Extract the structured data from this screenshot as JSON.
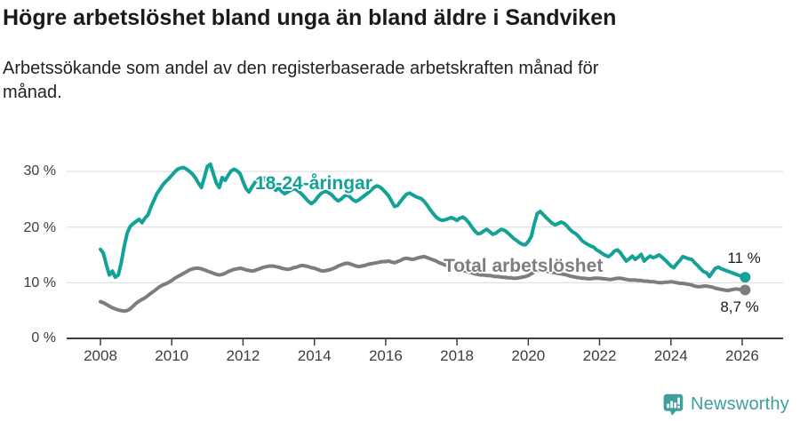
{
  "footer": {
    "logo_text": "Newsworthy",
    "logo_icon": "newsworthy-speech-bubble-bar-chart-icon",
    "brand_color": "#3f9f9b"
  },
  "chart_data": {
    "type": "line",
    "title": "Högre arbetslöshet bland unga än bland äldre i Sandviken",
    "subtitle": "Arbetssökande som andel av den registerbaserade arbetskraften månad för månad.",
    "x_unit": "month",
    "x_start": "2008-01",
    "x_end": "2026-02",
    "x_ticks": [
      2008,
      2010,
      2012,
      2014,
      2016,
      2018,
      2020,
      2022,
      2024,
      2026
    ],
    "x_tick_labels": [
      "2008",
      "2010",
      "2012",
      "2014",
      "2016",
      "2018",
      "2020",
      "2022",
      "2024",
      "2026"
    ],
    "y_ticks": [
      0,
      10,
      20,
      30
    ],
    "y_tick_labels_top_to_bottom": [
      "30 %",
      "20 %",
      "10 %",
      "0 %"
    ],
    "ylim": [
      0,
      33
    ],
    "grid": "horizontal",
    "grid_color": "#d9d9d9",
    "axis_color": "#3d3d3d",
    "series": [
      {
        "name": "18-24-åringar",
        "color": "#12a296",
        "end_label": "11 %",
        "values": [
          16.0,
          15.3,
          13.2,
          11.4,
          12.1,
          11.0,
          11.4,
          13.6,
          16.5,
          18.9,
          20.1,
          20.6,
          21.0,
          21.4,
          20.8,
          21.6,
          22.2,
          23.6,
          24.8,
          26.0,
          26.8,
          27.6,
          28.2,
          28.7,
          29.3,
          29.9,
          30.4,
          30.6,
          30.7,
          30.4,
          30.0,
          29.5,
          28.8,
          27.9,
          27.1,
          29.0,
          30.9,
          31.3,
          29.6,
          27.9,
          27.1,
          28.9,
          28.4,
          29.3,
          30.1,
          30.4,
          30.1,
          29.6,
          28.2,
          26.9,
          26.3,
          27.2,
          28.0,
          28.7,
          29.0,
          28.8,
          28.3,
          27.6,
          27.1,
          26.6,
          27.1,
          26.4,
          26.0,
          26.3,
          26.6,
          26.9,
          26.7,
          26.3,
          25.8,
          25.2,
          24.6,
          24.2,
          24.6,
          25.3,
          25.9,
          26.3,
          26.4,
          26.1,
          25.7,
          25.1,
          24.7,
          25.0,
          25.5,
          25.8,
          25.4,
          24.9,
          24.6,
          24.9,
          25.3,
          25.7,
          26.1,
          26.6,
          27.1,
          27.4,
          27.2,
          26.8,
          26.2,
          25.6,
          24.6,
          23.7,
          23.9,
          24.6,
          25.3,
          25.9,
          26.1,
          25.8,
          25.5,
          25.3,
          25.1,
          24.6,
          23.9,
          23.1,
          22.4,
          21.8,
          21.4,
          21.2,
          21.3,
          21.5,
          21.7,
          21.5,
          21.2,
          21.6,
          21.8,
          21.4,
          20.8,
          20.0,
          19.3,
          18.8,
          18.9,
          19.3,
          19.6,
          19.2,
          18.7,
          18.9,
          19.3,
          19.6,
          19.4,
          19.0,
          18.5,
          18.0,
          17.6,
          17.2,
          16.9,
          16.8,
          17.4,
          18.3,
          20.5,
          22.4,
          22.8,
          22.3,
          21.7,
          21.2,
          20.7,
          20.4,
          20.6,
          20.9,
          20.7,
          20.2,
          19.6,
          19.1,
          18.8,
          18.3,
          17.6,
          17.2,
          16.9,
          16.6,
          16.4,
          15.9,
          15.6,
          15.2,
          14.9,
          14.7,
          15.1,
          15.7,
          15.9,
          15.4,
          14.6,
          13.9,
          14.3,
          14.8,
          14.2,
          14.6,
          15.1,
          13.9,
          14.4,
          14.8,
          14.5,
          14.7,
          15.0,
          14.6,
          14.1,
          13.6,
          13.0,
          12.7,
          13.4,
          14.0,
          14.7,
          14.5,
          14.3,
          14.2,
          13.6,
          13.1,
          12.5,
          12.0,
          11.8,
          11.1,
          11.9,
          12.6,
          12.8,
          12.5,
          12.3,
          12.1,
          11.9,
          11.7,
          11.5,
          11.3,
          11.2,
          11.0
        ]
      },
      {
        "name": "Total arbetslöshet",
        "color": "#7d7d7d",
        "end_label": "8,7 %",
        "values": [
          6.6,
          6.4,
          6.1,
          5.8,
          5.5,
          5.3,
          5.1,
          5.0,
          4.9,
          5.0,
          5.3,
          5.8,
          6.3,
          6.7,
          7.0,
          7.3,
          7.7,
          8.1,
          8.5,
          8.9,
          9.3,
          9.6,
          9.8,
          10.1,
          10.4,
          10.8,
          11.1,
          11.4,
          11.7,
          12.0,
          12.3,
          12.5,
          12.6,
          12.6,
          12.5,
          12.3,
          12.1,
          11.9,
          11.7,
          11.5,
          11.4,
          11.5,
          11.7,
          12.0,
          12.2,
          12.4,
          12.5,
          12.6,
          12.5,
          12.3,
          12.2,
          12.1,
          12.2,
          12.4,
          12.6,
          12.8,
          12.9,
          13.0,
          13.0,
          12.9,
          12.8,
          12.6,
          12.5,
          12.4,
          12.5,
          12.7,
          12.8,
          13.0,
          13.1,
          13.0,
          12.9,
          12.7,
          12.6,
          12.4,
          12.2,
          12.1,
          12.2,
          12.3,
          12.5,
          12.7,
          13.0,
          13.2,
          13.4,
          13.5,
          13.4,
          13.2,
          13.0,
          12.9,
          13.0,
          13.1,
          13.3,
          13.4,
          13.5,
          13.6,
          13.7,
          13.8,
          13.8,
          13.9,
          13.7,
          13.6,
          13.8,
          14.0,
          14.3,
          14.4,
          14.3,
          14.2,
          14.3,
          14.5,
          14.6,
          14.7,
          14.5,
          14.3,
          14.1,
          13.9,
          13.6,
          13.4,
          13.2,
          13.0,
          12.9,
          12.8,
          12.6,
          12.4,
          12.2,
          12.1,
          11.9,
          11.8,
          11.6,
          11.5,
          11.4,
          11.4,
          11.3,
          11.3,
          11.2,
          11.1,
          11.1,
          11.0,
          11.0,
          10.9,
          10.9,
          10.8,
          10.8,
          10.9,
          11.0,
          11.1,
          11.3,
          11.6,
          11.9,
          12.1,
          12.2,
          12.2,
          12.1,
          12.0,
          11.9,
          11.8,
          11.7,
          11.6,
          11.5,
          11.4,
          11.2,
          11.1,
          11.0,
          10.9,
          10.8,
          10.8,
          10.7,
          10.7,
          10.8,
          10.8,
          10.8,
          10.7,
          10.7,
          10.6,
          10.6,
          10.7,
          10.8,
          10.8,
          10.7,
          10.6,
          10.5,
          10.5,
          10.5,
          10.4,
          10.4,
          10.3,
          10.3,
          10.2,
          10.2,
          10.1,
          10.0,
          10.0,
          10.1,
          10.1,
          10.2,
          10.1,
          10.0,
          9.9,
          9.9,
          9.8,
          9.7,
          9.6,
          9.4,
          9.3,
          9.3,
          9.4,
          9.4,
          9.3,
          9.2,
          9.0,
          8.9,
          8.8,
          8.7,
          8.6,
          8.7,
          8.8,
          8.9,
          8.8,
          8.8,
          8.7
        ]
      }
    ]
  }
}
